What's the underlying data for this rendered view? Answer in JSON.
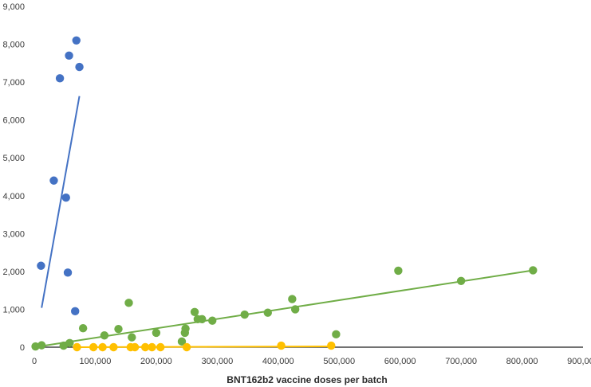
{
  "chart_data": {
    "type": "scatter",
    "title": "",
    "xlabel": "BNT162b2 vaccine doses per batch",
    "ylabel": "",
    "xlim": [
      0,
      900000
    ],
    "ylim": [
      0,
      9000
    ],
    "x_ticks": [
      0,
      100000,
      200000,
      300000,
      400000,
      500000,
      600000,
      700000,
      800000,
      900000
    ],
    "y_ticks": [
      0,
      1000,
      2000,
      3000,
      4000,
      5000,
      6000,
      7000,
      8000,
      9000
    ],
    "x_tick_labels": [
      "0",
      "100,000",
      "200,000",
      "300,000",
      "400,000",
      "500,000",
      "600,000",
      "700,000",
      "800,000",
      "900,000"
    ],
    "y_tick_labels": [
      "0",
      "1,000",
      "2,000",
      "3,000",
      "4,000",
      "5,000",
      "6,000",
      "7,000",
      "8,000",
      "9,000"
    ],
    "grid": false,
    "legend": "none",
    "series": [
      {
        "color": "#4472c4",
        "points": [
          [
            11000,
            2150
          ],
          [
            32000,
            4400
          ],
          [
            42000,
            7100
          ],
          [
            52000,
            3950
          ],
          [
            55000,
            1970
          ],
          [
            57000,
            7700
          ],
          [
            67000,
            950
          ],
          [
            69000,
            8100
          ],
          [
            74000,
            7400
          ]
        ],
        "trendline": [
          [
            12000,
            1040
          ],
          [
            74000,
            6630
          ]
        ]
      },
      {
        "color": "#70ad47",
        "points": [
          [
            2000,
            20
          ],
          [
            12000,
            50
          ],
          [
            48000,
            40
          ],
          [
            58000,
            110
          ],
          [
            80000,
            500
          ],
          [
            115000,
            310
          ],
          [
            138000,
            480
          ],
          [
            155000,
            1170
          ],
          [
            160000,
            260
          ],
          [
            200000,
            380
          ],
          [
            242000,
            150
          ],
          [
            247000,
            380
          ],
          [
            248000,
            490
          ],
          [
            263000,
            930
          ],
          [
            268000,
            740
          ],
          [
            275000,
            740
          ],
          [
            292000,
            700
          ],
          [
            345000,
            860
          ],
          [
            383000,
            910
          ],
          [
            423000,
            1270
          ],
          [
            428000,
            1000
          ],
          [
            495000,
            340
          ],
          [
            597000,
            2020
          ],
          [
            700000,
            1750
          ],
          [
            818000,
            2030
          ]
        ],
        "trendline": [
          [
            0,
            0
          ],
          [
            818000,
            2030
          ]
        ]
      },
      {
        "color": "#ffc000",
        "points": [
          [
            70000,
            0
          ],
          [
            97000,
            0
          ],
          [
            112000,
            0
          ],
          [
            130000,
            0
          ],
          [
            158000,
            0
          ],
          [
            165000,
            0
          ],
          [
            182000,
            0
          ],
          [
            193000,
            0
          ],
          [
            207000,
            0
          ],
          [
            250000,
            0
          ],
          [
            405000,
            40
          ],
          [
            487000,
            40
          ]
        ],
        "trendline": [
          [
            70000,
            0
          ],
          [
            487000,
            20
          ]
        ]
      }
    ]
  }
}
